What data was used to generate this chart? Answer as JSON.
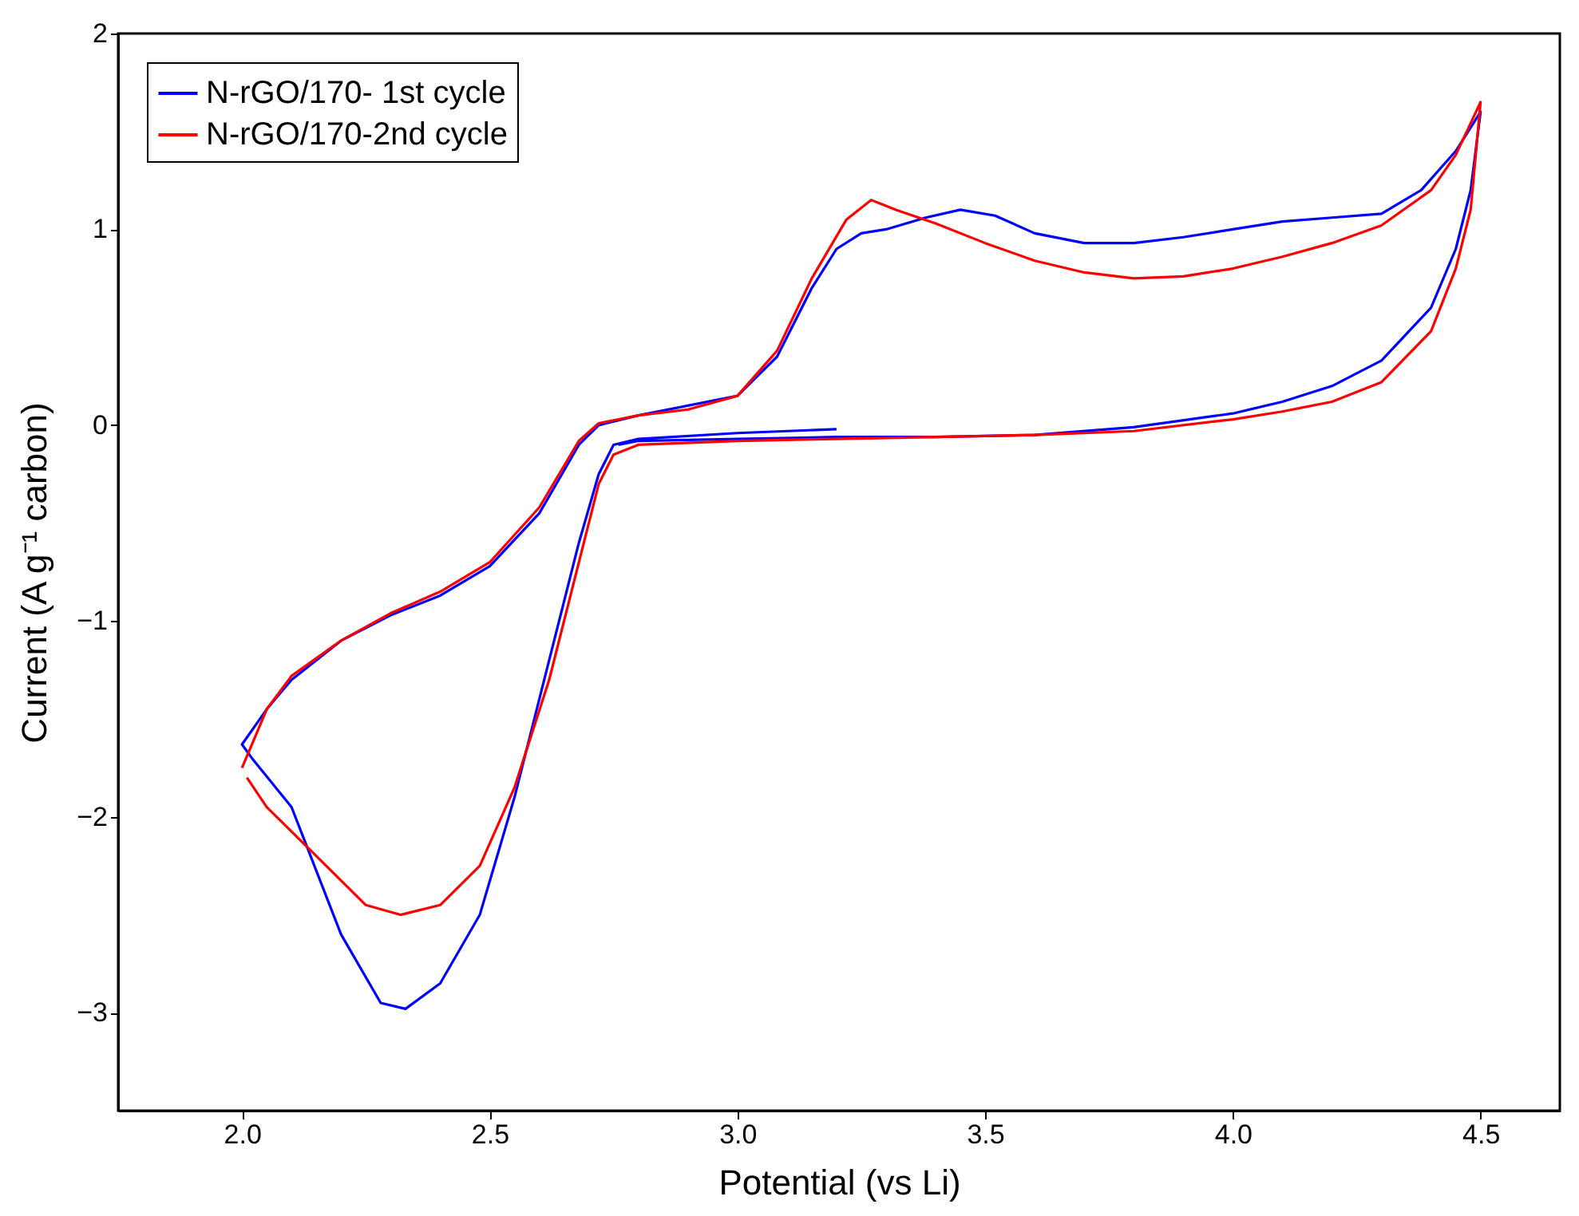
{
  "chart_data": {
    "type": "line",
    "xlabel": "Potential (vs Li)",
    "ylabel": "Current (A g⁻¹ carbon)",
    "xlim": [
      1.75,
      4.66
    ],
    "ylim": [
      -3.5,
      2
    ],
    "xticks": [
      {
        "value": 2,
        "label": "2.0"
      },
      2.5,
      {
        "value": 3,
        "label": "3.0"
      },
      3.5,
      {
        "value": 4,
        "label": "4.0"
      },
      4.5
    ],
    "yticks": [
      -3,
      -2,
      -1,
      0,
      1,
      2
    ],
    "grid": false,
    "legend": "top left",
    "marker": "none",
    "line_style": "solid",
    "series": [
      {
        "name": "N-rGO/170- 1st cycle",
        "color": "#0000ff",
        "x": [
          3.2,
          3.0,
          2.8,
          2.75,
          2.72,
          2.68,
          2.62,
          2.55,
          2.48,
          2.4,
          2.33,
          2.28,
          2.2,
          2.1,
          2.02,
          2.0,
          2.05,
          2.1,
          2.2,
          2.3,
          2.4,
          2.5,
          2.6,
          2.68,
          2.72,
          2.8,
          3.0,
          3.08,
          3.15,
          3.2,
          3.25,
          3.3,
          3.38,
          3.45,
          3.52,
          3.6,
          3.7,
          3.8,
          3.9,
          4.0,
          4.1,
          4.2,
          4.3,
          4.38,
          4.45,
          4.5,
          4.48,
          4.45,
          4.4,
          4.3,
          4.2,
          4.1,
          4.0,
          3.8,
          3.6,
          3.4,
          3.2,
          3.0,
          2.8,
          2.76
        ],
        "values": [
          -0.02,
          -0.04,
          -0.07,
          -0.1,
          -0.25,
          -0.6,
          -1.2,
          -1.9,
          -2.5,
          -2.85,
          -2.98,
          -2.95,
          -2.6,
          -1.95,
          -1.7,
          -1.63,
          -1.45,
          -1.3,
          -1.1,
          -0.97,
          -0.87,
          -0.72,
          -0.45,
          -0.1,
          0.0,
          0.05,
          0.15,
          0.35,
          0.7,
          0.9,
          0.98,
          1.0,
          1.06,
          1.1,
          1.07,
          0.98,
          0.93,
          0.93,
          0.96,
          1.0,
          1.04,
          1.06,
          1.08,
          1.2,
          1.4,
          1.6,
          1.2,
          0.9,
          0.6,
          0.33,
          0.2,
          0.12,
          0.06,
          -0.01,
          -0.05,
          -0.06,
          -0.06,
          -0.07,
          -0.08,
          -0.1
        ]
      },
      {
        "name": "N-rGO/170-2nd cycle",
        "color": "#ff0000",
        "x": [
          2.0,
          2.05,
          2.1,
          2.2,
          2.3,
          2.4,
          2.5,
          2.6,
          2.68,
          2.72,
          2.8,
          2.9,
          3.0,
          3.08,
          3.15,
          3.22,
          3.27,
          3.32,
          3.4,
          3.5,
          3.6,
          3.7,
          3.8,
          3.9,
          4.0,
          4.1,
          4.2,
          4.3,
          4.4,
          4.45,
          4.5,
          4.48,
          4.45,
          4.4,
          4.3,
          4.2,
          4.1,
          4.0,
          3.8,
          3.6,
          3.4,
          3.2,
          3.0,
          2.8,
          2.75,
          2.72,
          2.68,
          2.62,
          2.55,
          2.48,
          2.4,
          2.32,
          2.25,
          2.15,
          2.05,
          2.01
        ],
        "values": [
          -1.75,
          -1.45,
          -1.28,
          -1.1,
          -0.96,
          -0.85,
          -0.7,
          -0.42,
          -0.08,
          0.01,
          0.05,
          0.08,
          0.15,
          0.38,
          0.75,
          1.05,
          1.15,
          1.1,
          1.03,
          0.93,
          0.84,
          0.78,
          0.75,
          0.76,
          0.8,
          0.86,
          0.93,
          1.02,
          1.2,
          1.38,
          1.65,
          1.1,
          0.8,
          0.48,
          0.22,
          0.12,
          0.07,
          0.03,
          -0.03,
          -0.05,
          -0.06,
          -0.07,
          -0.08,
          -0.1,
          -0.15,
          -0.3,
          -0.7,
          -1.3,
          -1.85,
          -2.25,
          -2.45,
          -2.5,
          -2.45,
          -2.2,
          -1.95,
          -1.8
        ]
      }
    ]
  }
}
